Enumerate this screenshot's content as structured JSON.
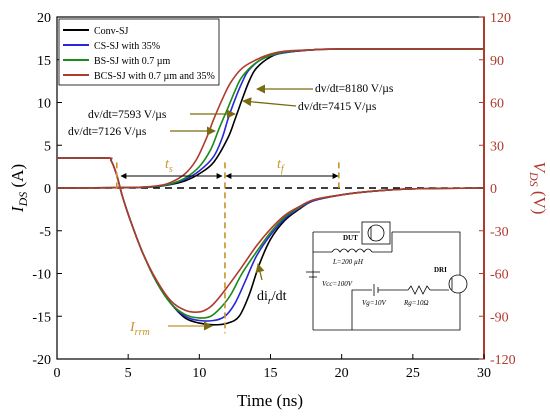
{
  "chart_data": {
    "type": "line",
    "xlabel": "Time (ns)",
    "ylabel_left": "I_DS (A)",
    "ylabel_right": "V_DS (V)",
    "xlim": [
      0,
      30
    ],
    "ylim_left": [
      -20,
      20
    ],
    "ylim_right": [
      -120,
      120
    ],
    "x_ticks": [
      "0",
      "5",
      "10",
      "15",
      "20",
      "25",
      "30"
    ],
    "y_ticks_left": [
      "20",
      "15",
      "10",
      "5",
      "0",
      "-5",
      "-10",
      "-15",
      "-20"
    ],
    "y_ticks_right": [
      "120",
      "90",
      "60",
      "30",
      "0",
      "-30",
      "-60",
      "-90",
      "-120"
    ],
    "grid": false,
    "legend_position": "top-left",
    "series": [
      {
        "name": "Conv-SJ",
        "color": "#000000",
        "current": [
          [
            0,
            3.5
          ],
          [
            3.5,
            3.5
          ],
          [
            3.8,
            3.2
          ],
          [
            4.2,
            1.5
          ],
          [
            4.6,
            -1
          ],
          [
            5.2,
            -4
          ],
          [
            6,
            -7.5
          ],
          [
            7,
            -11
          ],
          [
            8,
            -13.5
          ],
          [
            9,
            -15.2
          ],
          [
            10,
            -15.8
          ],
          [
            11,
            -16
          ],
          [
            12,
            -15.8
          ],
          [
            12.8,
            -15
          ],
          [
            13.5,
            -12.5
          ],
          [
            14.2,
            -9
          ],
          [
            15,
            -6
          ],
          [
            16,
            -3.8
          ],
          [
            17,
            -2.5
          ],
          [
            18,
            -1.5
          ],
          [
            20,
            -0.8
          ],
          [
            22,
            -0.4
          ],
          [
            25,
            -0.1
          ],
          [
            30,
            0
          ]
        ],
        "voltage": [
          [
            0,
            0
          ],
          [
            5,
            0.3
          ],
          [
            7,
            1
          ],
          [
            8,
            2.5
          ],
          [
            9,
            5
          ],
          [
            10,
            10
          ],
          [
            11,
            18
          ],
          [
            12,
            35
          ],
          [
            12.5,
            48
          ],
          [
            13,
            62
          ],
          [
            13.5,
            75
          ],
          [
            14,
            84
          ],
          [
            15,
            92
          ],
          [
            16,
            95
          ],
          [
            18,
            97
          ],
          [
            20,
            97.5
          ],
          [
            30,
            97.5
          ]
        ]
      },
      {
        "name": "CS-SJ with 35%",
        "color": "#2828d8",
        "current": [
          [
            0,
            3.5
          ],
          [
            3.5,
            3.5
          ],
          [
            3.8,
            3.2
          ],
          [
            4.2,
            1.5
          ],
          [
            4.6,
            -1
          ],
          [
            5.2,
            -4
          ],
          [
            6,
            -7.5
          ],
          [
            7,
            -11
          ],
          [
            8,
            -13.5
          ],
          [
            9,
            -15
          ],
          [
            10,
            -15.5
          ],
          [
            11,
            -15.5
          ],
          [
            11.8,
            -15
          ],
          [
            12.5,
            -13.5
          ],
          [
            13.2,
            -11
          ],
          [
            14,
            -8
          ],
          [
            15,
            -5.5
          ],
          [
            16,
            -3.6
          ],
          [
            17,
            -2.4
          ],
          [
            18,
            -1.5
          ],
          [
            20,
            -0.8
          ],
          [
            22,
            -0.4
          ],
          [
            25,
            -0.1
          ],
          [
            30,
            0
          ]
        ],
        "voltage": [
          [
            0,
            0
          ],
          [
            5,
            0.3
          ],
          [
            7,
            1
          ],
          [
            8,
            2.8
          ],
          [
            9,
            6
          ],
          [
            10,
            12
          ],
          [
            11,
            22
          ],
          [
            11.6,
            35
          ],
          [
            12,
            48
          ],
          [
            12.5,
            62
          ],
          [
            13,
            74
          ],
          [
            13.5,
            83
          ],
          [
            14.5,
            91
          ],
          [
            16,
            95
          ],
          [
            18,
            97
          ],
          [
            20,
            97.5
          ],
          [
            30,
            97.5
          ]
        ]
      },
      {
        "name": "BS-SJ with 0.7 µm",
        "color": "#1a8a1a",
        "current": [
          [
            0,
            3.5
          ],
          [
            3.5,
            3.5
          ],
          [
            3.8,
            3.2
          ],
          [
            4.2,
            1.5
          ],
          [
            4.6,
            -1
          ],
          [
            5.2,
            -4
          ],
          [
            6,
            -7.5
          ],
          [
            7,
            -11
          ],
          [
            8,
            -13.5
          ],
          [
            9,
            -14.8
          ],
          [
            10,
            -15.2
          ],
          [
            10.8,
            -15
          ],
          [
            11.5,
            -14
          ],
          [
            12.2,
            -12.5
          ],
          [
            13,
            -10
          ],
          [
            14,
            -7.5
          ],
          [
            15,
            -5.2
          ],
          [
            16,
            -3.4
          ],
          [
            17,
            -2.3
          ],
          [
            18,
            -1.4
          ],
          [
            20,
            -0.8
          ],
          [
            22,
            -0.4
          ],
          [
            25,
            -0.1
          ],
          [
            30,
            0
          ]
        ],
        "voltage": [
          [
            0,
            0
          ],
          [
            5,
            0.3
          ],
          [
            7,
            1.2
          ],
          [
            8,
            3
          ],
          [
            9,
            7
          ],
          [
            10,
            15
          ],
          [
            10.8,
            27
          ],
          [
            11.4,
            42
          ],
          [
            12,
            56
          ],
          [
            12.5,
            68
          ],
          [
            13,
            78
          ],
          [
            14,
            88
          ],
          [
            15,
            93
          ],
          [
            16,
            95.5
          ],
          [
            18,
            97
          ],
          [
            20,
            97.5
          ],
          [
            30,
            97.5
          ]
        ]
      },
      {
        "name": "BCS-SJ with 0.7 µm and 35%",
        "color": "#b03a2e",
        "current": [
          [
            0,
            3.5
          ],
          [
            3.5,
            3.5
          ],
          [
            3.8,
            3.2
          ],
          [
            4.2,
            1.5
          ],
          [
            4.6,
            -1
          ],
          [
            5.2,
            -4
          ],
          [
            6,
            -7.5
          ],
          [
            7,
            -10.8
          ],
          [
            8,
            -13.2
          ],
          [
            9,
            -14.3
          ],
          [
            10,
            -14.5
          ],
          [
            10.7,
            -14
          ],
          [
            11.3,
            -13
          ],
          [
            12,
            -11.5
          ],
          [
            13,
            -9.2
          ],
          [
            14,
            -6.8
          ],
          [
            15,
            -4.8
          ],
          [
            16,
            -3.2
          ],
          [
            17,
            -2.2
          ],
          [
            18,
            -1.4
          ],
          [
            20,
            -0.8
          ],
          [
            22,
            -0.4
          ],
          [
            25,
            -0.1
          ],
          [
            30,
            0
          ]
        ],
        "voltage": [
          [
            0,
            0
          ],
          [
            5,
            0.3
          ],
          [
            7,
            1.5
          ],
          [
            8,
            4
          ],
          [
            9,
            10
          ],
          [
            9.8,
            20
          ],
          [
            10.5,
            35
          ],
          [
            11,
            48
          ],
          [
            11.6,
            62
          ],
          [
            12.2,
            74
          ],
          [
            13,
            84
          ],
          [
            14,
            90
          ],
          [
            15,
            94
          ],
          [
            16,
            96
          ],
          [
            18,
            97
          ],
          [
            20,
            97.5
          ],
          [
            30,
            97.5
          ]
        ]
      }
    ],
    "markers": {
      "t_start": 4.2,
      "t_mid": 11.8,
      "t_end": 19.8
    },
    "annotations": {
      "dvdt_1": "dv/dt=8180 V/µs",
      "dvdt_2": "dv/dt=7415 V/µs",
      "dvdt_3": "dv/dt=7593 V/µs",
      "dvdt_4": "dv/dt=7126 V/µs",
      "ts": "t",
      "ts_sub": "s",
      "tf": "t",
      "tf_sub": "f",
      "irrm": "I",
      "irrm_sub": "rrm",
      "dirdt_a": "di",
      "dirdt_sub": "r",
      "dirdt_b": "/dt"
    },
    "circuit": {
      "dut": "DUT",
      "dri": "DRI",
      "inductor": "L=200 µH",
      "vcc": "Vcc=100V",
      "vg": "Vg=10V",
      "rg": "Rg=10Ω"
    }
  },
  "colors": {
    "right_axis": "#b03a2e",
    "annotation_gold": "#c8922a",
    "annotation_olive": "#7a6a12"
  }
}
